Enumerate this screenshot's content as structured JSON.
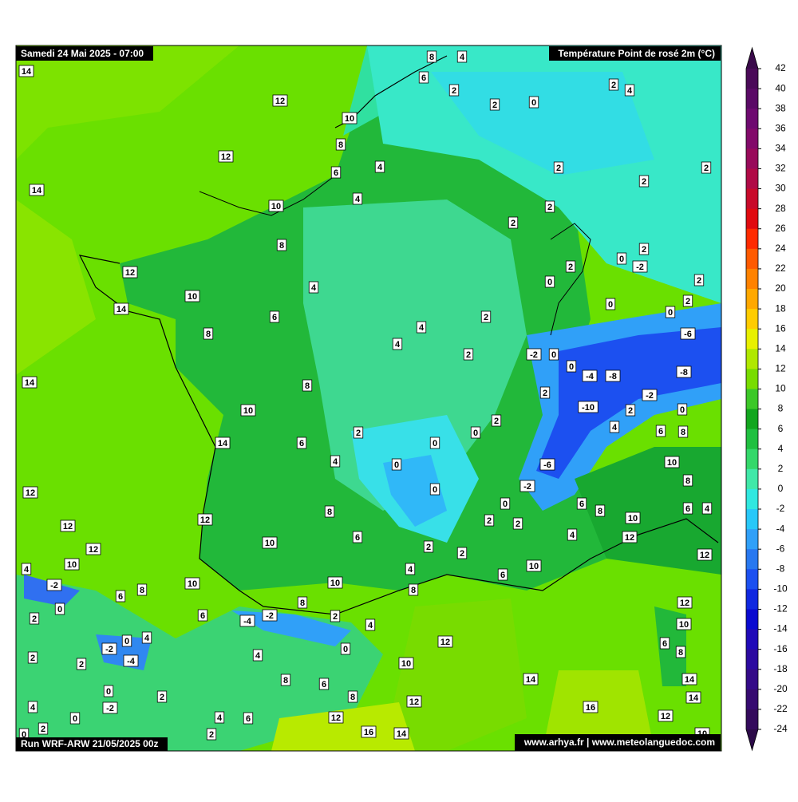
{
  "header": {
    "date": "Samedi 24 Mai 2025 - 07:00",
    "title": "Température Point de rosé 2m (°C)"
  },
  "footer": {
    "run": "Run WRF-ARW 21/05/2025 00z",
    "site": "www.arhya.fr | www.meteolanguedoc.com"
  },
  "colorbar": {
    "ticks": [
      42,
      40,
      38,
      36,
      34,
      32,
      30,
      28,
      26,
      24,
      22,
      20,
      18,
      16,
      14,
      12,
      10,
      8,
      6,
      4,
      2,
      0,
      -2,
      -4,
      -6,
      -8,
      -10,
      -12,
      -14,
      -16,
      -18,
      -20,
      -22,
      -24
    ],
    "colors": [
      "#3a0a4a",
      "#4a0a58",
      "#5a0a66",
      "#6e0a70",
      "#820a6a",
      "#980a5a",
      "#b00a46",
      "#c80a2a",
      "#e00a10",
      "#ff2a00",
      "#ff5a00",
      "#ff8200",
      "#ffa800",
      "#ffcc00",
      "#e8f000",
      "#b0e800",
      "#78dc00",
      "#3cc828",
      "#12a61e",
      "#20c040",
      "#34d86a",
      "#40e8a8",
      "#30e8e0",
      "#28c8f8",
      "#30a0f8",
      "#2878f0",
      "#1c50f0",
      "#1028e0",
      "#0a0ad0",
      "#200ab8",
      "#2c0aa0",
      "#340a88",
      "#360a70",
      "#340a5c",
      "#2c0a48"
    ]
  },
  "stations": [
    14,
    8,
    4,
    6,
    2,
    2,
    4,
    12,
    2,
    0,
    10,
    8,
    12,
    4,
    2,
    2,
    14,
    6,
    2,
    4,
    10,
    2,
    2,
    8,
    2,
    0,
    -2,
    2,
    12,
    0,
    2,
    4,
    10,
    14,
    0,
    2,
    0,
    6,
    2,
    8,
    4,
    -6,
    4,
    2,
    -2,
    0,
    0,
    -4,
    -8,
    -8,
    14,
    8,
    2,
    -2,
    -10,
    2,
    0,
    10,
    2,
    4,
    6,
    8,
    2,
    0,
    0,
    6,
    14,
    4,
    0,
    -6,
    10,
    0,
    -2,
    8,
    12,
    0,
    6,
    8,
    6,
    4,
    8,
    2,
    2,
    10,
    12,
    12,
    6,
    4,
    12,
    10,
    2,
    2,
    12,
    12,
    10,
    4,
    10,
    6,
    4,
    -2,
    10,
    10,
    8,
    8,
    6,
    12,
    0,
    8,
    6,
    -4,
    -2,
    2,
    4,
    2,
    10,
    4,
    0,
    -2,
    -4,
    12,
    6,
    8,
    0,
    4,
    2,
    2,
    10,
    8,
    6,
    14,
    14,
    0,
    8,
    2,
    14,
    -2,
    12,
    4,
    16,
    0,
    4,
    6,
    12,
    12,
    2,
    0,
    2,
    16,
    14,
    10
  ]
}
